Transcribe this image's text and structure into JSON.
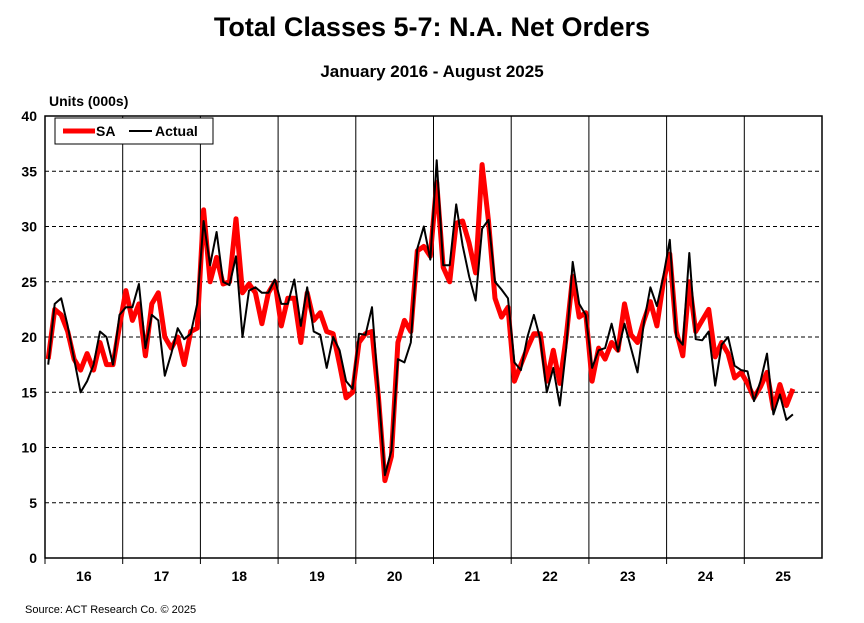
{
  "chart_data": {
    "type": "line",
    "title": "Total Classes 5-7: N.A. Net Orders",
    "subtitle": "January 2016 - August 2025",
    "ylabel": "Units (000s)",
    "xlabel": "",
    "ylim": [
      0,
      40
    ],
    "yticks": [
      0,
      5,
      10,
      15,
      20,
      25,
      30,
      35,
      40
    ],
    "xtick_labels": [
      "16",
      "17",
      "18",
      "19",
      "20",
      "21",
      "22",
      "23",
      "24",
      "25"
    ],
    "grid": "horizontal dashed, vertical year separators",
    "legend_position": "top-left",
    "series": [
      {
        "name": "SA",
        "color": "#ff0000",
        "values": [
          18,
          22.5,
          22,
          20.5,
          18,
          17,
          18.5,
          17,
          19.5,
          17.5,
          17.5,
          21,
          24.2,
          21.5,
          23,
          18.3,
          23,
          24,
          20,
          19,
          20,
          17.5,
          20.5,
          20.8,
          31.5,
          25,
          27.2,
          24.8,
          25,
          30.7,
          24,
          24.8,
          24,
          21.2,
          24,
          25,
          21,
          23.5,
          23.5,
          19.5,
          24,
          21.5,
          22.2,
          20.5,
          20.3,
          17.5,
          14.5,
          15,
          19.5,
          20.3,
          20.5,
          14.5,
          7,
          9.2,
          19.5,
          21.5,
          20.5,
          27.8,
          28.2,
          27.3,
          34,
          26.3,
          25,
          30.3,
          30.5,
          28.5,
          25.8,
          35.6,
          30.5,
          23.5,
          21.8,
          22.7,
          16,
          17.5,
          19,
          20.3,
          20.3,
          16,
          18.8,
          15.8,
          20,
          25.5,
          21.8,
          22.2,
          16,
          19,
          18,
          19.5,
          18.8,
          23,
          20.2,
          19.5,
          21.5,
          23.2,
          21,
          25,
          27.5,
          20.5,
          18.3,
          25,
          20.5,
          21.5,
          22.5,
          18.2,
          19.5,
          18.5,
          16.3,
          16.8,
          15.8,
          14.5,
          15.5,
          16.8,
          13.5,
          15.7,
          13.8,
          15.3
        ]
      },
      {
        "name": "Actual",
        "color": "#000000",
        "values": [
          17.5,
          23,
          23.5,
          21,
          18,
          15,
          16,
          17.5,
          20.5,
          20,
          17.5,
          22,
          22.7,
          22.7,
          24.8,
          19,
          22,
          21.5,
          16.5,
          18.5,
          20.8,
          19.8,
          20.3,
          23,
          30.5,
          26.5,
          29.5,
          25,
          24.7,
          27.3,
          20,
          24.2,
          24.5,
          24,
          24,
          25.2,
          23,
          23,
          25.2,
          21,
          24.5,
          20.5,
          20.2,
          17.2,
          20,
          18.8,
          16,
          15.3,
          20.3,
          20.2,
          22.7,
          15,
          7.5,
          9.7,
          18,
          17.7,
          19.5,
          28,
          30,
          27,
          36,
          26.5,
          26.5,
          32,
          28.3,
          25.5,
          23.3,
          29.8,
          30.6,
          25,
          24.3,
          23.5,
          17.7,
          17,
          20,
          22,
          19.8,
          15,
          17.2,
          13.8,
          19,
          26.8,
          23,
          22,
          17.2,
          18.8,
          19,
          21.2,
          18.7,
          21.2,
          19,
          16.8,
          21.3,
          24.5,
          22.8,
          25.5,
          28.8,
          20,
          19.3,
          27.6,
          19.8,
          19.7,
          20.5,
          15.6,
          19.3,
          20,
          17.4,
          17,
          16.9,
          14.2,
          16,
          18.5,
          13,
          14.8,
          12.5,
          13
        ]
      }
    ]
  },
  "source": "Source: ACT Research Co. © 2025"
}
